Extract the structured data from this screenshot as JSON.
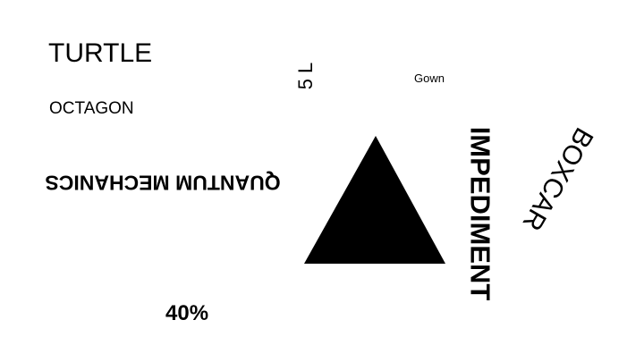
{
  "words": {
    "turtle": "TURTLE",
    "octagon": "OCTAGON",
    "quantum": "QUANTUM MECHANICS",
    "five_l": "5 L",
    "gown": "Gown",
    "impediment": "IMPEDIMENT",
    "boxcar": "BOXCAR",
    "percent": "40%"
  },
  "shapes": {
    "triangle": {
      "shape": "triangle",
      "color": "#000000"
    }
  },
  "colors": {
    "background": "#ffffff",
    "text": "#000000"
  }
}
